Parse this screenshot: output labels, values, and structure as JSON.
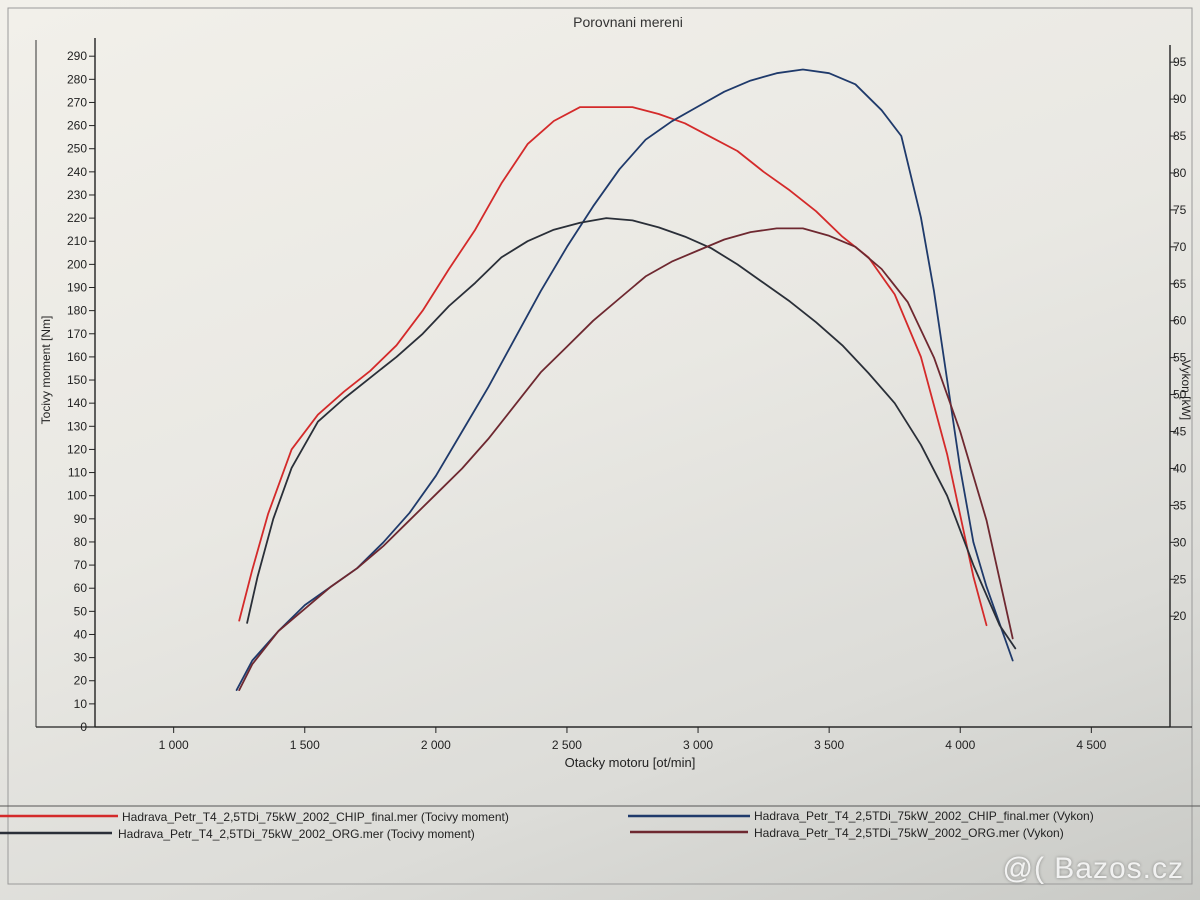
{
  "watermark": "@( Bazos.cz",
  "chart_data": {
    "type": "line",
    "title": "Porovnani mereni",
    "xlabel": "Otacky motoru [ot/min]",
    "ylabel": "Tocivy moment [Nm]",
    "y2label": "Vykon [kW]",
    "xlim": [
      700,
      4800
    ],
    "ylim": [
      0,
      297
    ],
    "y2lim": [
      5,
      98
    ],
    "grid": false,
    "legend_position": "bottom",
    "x_ticks": [
      1000,
      1500,
      2000,
      2500,
      3000,
      3500,
      4000,
      4500
    ],
    "x_tick_labels": [
      "1 000",
      "1 500",
      "2 000",
      "2 500",
      "3 000",
      "3 500",
      "4 000",
      "4 500"
    ],
    "y_ticks": [
      0,
      10,
      20,
      30,
      40,
      50,
      60,
      70,
      80,
      90,
      100,
      110,
      120,
      130,
      140,
      150,
      160,
      170,
      180,
      190,
      200,
      210,
      220,
      230,
      240,
      250,
      260,
      270,
      280,
      290
    ],
    "y_tick_labels": [
      "0",
      "10",
      "20",
      "30",
      "40",
      "50",
      "60",
      "70",
      "80",
      "90",
      "100",
      "110",
      "120",
      "130",
      "140",
      "150",
      "160",
      "170",
      "180",
      "190",
      "200",
      "210",
      "220",
      "230",
      "240",
      "250",
      "260",
      "270",
      "280",
      "290"
    ],
    "y2_ticks": [
      20,
      25,
      30,
      35,
      40,
      45,
      50,
      55,
      60,
      65,
      70,
      75,
      80,
      85,
      90,
      95
    ],
    "y2_tick_labels": [
      "20",
      "25",
      "30",
      "35",
      "40",
      "45",
      "50",
      "55",
      "60",
      "65",
      "70",
      "75",
      "80",
      "85",
      "90",
      "95"
    ],
    "series": [
      {
        "name": "Hadrava_Petr_T4_2,5TDi_75kW_2002_CHIP_final.mer  (Tocivy moment)",
        "color": "#d42a2a",
        "axis": "left",
        "x": [
          1250,
          1300,
          1360,
          1450,
          1550,
          1650,
          1750,
          1850,
          1950,
          2050,
          2150,
          2250,
          2350,
          2450,
          2550,
          2650,
          2750,
          2850,
          2950,
          3050,
          3150,
          3250,
          3350,
          3450,
          3550,
          3650,
          3750,
          3850,
          3950,
          4050,
          4100
        ],
        "y": [
          46,
          68,
          92,
          120,
          135,
          145,
          154,
          165,
          180,
          198,
          215,
          235,
          252,
          262,
          268,
          268,
          268,
          265,
          261,
          255,
          249,
          240,
          232,
          223,
          212,
          203,
          187,
          160,
          118,
          65,
          44
        ]
      },
      {
        "name": "Hadrava_Petr_T4_2,5TDi_75kW_2002_CHIP_final.mer  (Vykon)",
        "color": "#1f3a6b",
        "axis": "right",
        "x": [
          1240,
          1300,
          1400,
          1500,
          1600,
          1700,
          1800,
          1900,
          2000,
          2100,
          2200,
          2300,
          2400,
          2500,
          2600,
          2700,
          2800,
          2900,
          3000,
          3100,
          3200,
          3300,
          3400,
          3500,
          3600,
          3700,
          3775,
          3850,
          3900,
          3950,
          4000,
          4050,
          4100,
          4150,
          4200
        ],
        "y": [
          10,
          14,
          18,
          21.5,
          24,
          26.5,
          30,
          34,
          39,
          45,
          51,
          57.5,
          64,
          70,
          75.5,
          80.5,
          84.5,
          87,
          89,
          91,
          92.5,
          93.5,
          94,
          93.5,
          92,
          88.5,
          85,
          74,
          64,
          52,
          40,
          30,
          24,
          19,
          14
        ]
      },
      {
        "name": "Hadrava_Petr_T4_2,5TDi_75kW_2002_ORG.mer  (Tocivy moment)",
        "color": "#2a2f38",
        "axis": "left",
        "x": [
          1280,
          1320,
          1380,
          1450,
          1550,
          1650,
          1750,
          1850,
          1950,
          2050,
          2150,
          2250,
          2350,
          2450,
          2550,
          2650,
          2750,
          2850,
          2950,
          3050,
          3150,
          3250,
          3350,
          3450,
          3550,
          3650,
          3750,
          3850,
          3950,
          4050,
          4150,
          4210
        ],
        "y": [
          45,
          65,
          90,
          112,
          132,
          142,
          151,
          160,
          170,
          182,
          192,
          203,
          210,
          215,
          218,
          220,
          219,
          216,
          212,
          207,
          200,
          192,
          184,
          175,
          165,
          153,
          140,
          122,
          100,
          70,
          44,
          34
        ]
      },
      {
        "name": "Hadrava_Petr_T4_2,5TDi_75kW_2002_ORG.mer  (Vykon)",
        "color": "#6e2830",
        "axis": "right",
        "x": [
          1250,
          1300,
          1400,
          1500,
          1600,
          1700,
          1800,
          1900,
          2000,
          2100,
          2200,
          2300,
          2400,
          2500,
          2600,
          2700,
          2800,
          2900,
          3000,
          3100,
          3200,
          3300,
          3400,
          3500,
          3600,
          3700,
          3800,
          3900,
          4000,
          4100,
          4200
        ],
        "y": [
          10,
          13.5,
          18,
          21,
          24,
          26.5,
          29.5,
          33,
          36.5,
          40,
          44,
          48.5,
          53,
          56.5,
          60,
          63,
          66,
          68,
          69.5,
          71,
          72,
          72.5,
          72.5,
          71.5,
          70,
          67,
          62.5,
          55,
          45,
          33,
          17
        ]
      }
    ]
  }
}
